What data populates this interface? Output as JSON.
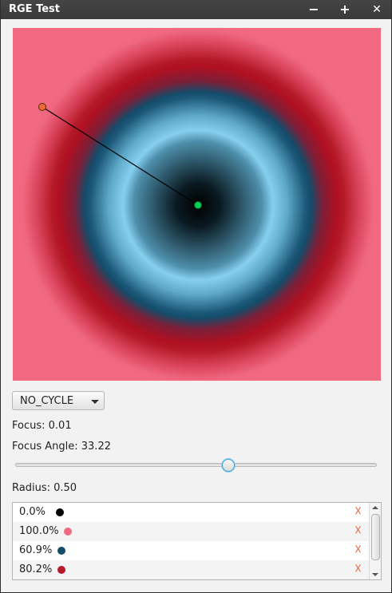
{
  "window": {
    "title": "RGE Test",
    "minimize_glyph": "−",
    "maximize_glyph": "+",
    "close_glyph": "✕"
  },
  "gradient_canvas": {
    "description_colors": [
      "#000000",
      "#f26a81",
      "#154c6a",
      "#b51a28",
      "#87cfef"
    ],
    "focus_handle_color": "#00cc55",
    "radius_handle_color": "#ee6a33"
  },
  "cycle_method": {
    "selected": "NO_CYCLE"
  },
  "controls": {
    "focus_label": "Focus: 0.01",
    "focus_angle_label": "Focus Angle: 33.22",
    "radius_label": "Radius: 0.50",
    "slider_fraction": 0.59
  },
  "stops": [
    {
      "label": "0.0%",
      "color": "#000000"
    },
    {
      "label": "100.0%",
      "color": "#f26a81"
    },
    {
      "label": "60.9%",
      "color": "#154c6a"
    },
    {
      "label": "80.2%",
      "color": "#b51a28"
    }
  ],
  "remove_glyph": "☓"
}
